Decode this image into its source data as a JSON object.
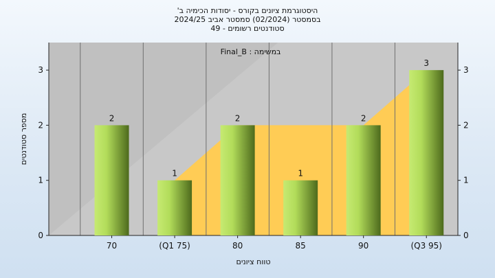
{
  "chart_data": {
    "type": "bar",
    "title": [
      "היסטוגרמת ציונים בקורס - יסודות הכימיה ב'",
      "בסמסטר  (02/2024)  סמסטר אביב 2024/25",
      "סטודנטים רשומים - 49"
    ],
    "annotation": "במשימה : Final_B",
    "xlabel": "טווח ציונים",
    "ylabel": "מספר סטודנטים",
    "categories": [
      "70",
      "(Q1 75)",
      "80",
      "85",
      "90",
      "(Q3 95)"
    ],
    "values": [
      2,
      1,
      2,
      1,
      2,
      3
    ],
    "data_labels": [
      "2",
      "1",
      "2",
      "1",
      "2",
      "3"
    ],
    "ylim": [
      0,
      3.5
    ],
    "yticks": [
      0,
      1,
      2,
      3
    ],
    "grid": "vertical",
    "background_area": {
      "description": "interquartile band shown in yellow",
      "x_start": "(Q1 75)",
      "x_end": "(Q3 95)",
      "values": [
        0,
        1,
        2,
        2,
        2,
        3
      ]
    },
    "colors": {
      "plot_background": "#c0c0c0",
      "area_fill": "#ffcc55",
      "bar_light": "#c6ea72",
      "bar_dark": "#4d6a1c",
      "page_background": "#e6eff8"
    }
  }
}
